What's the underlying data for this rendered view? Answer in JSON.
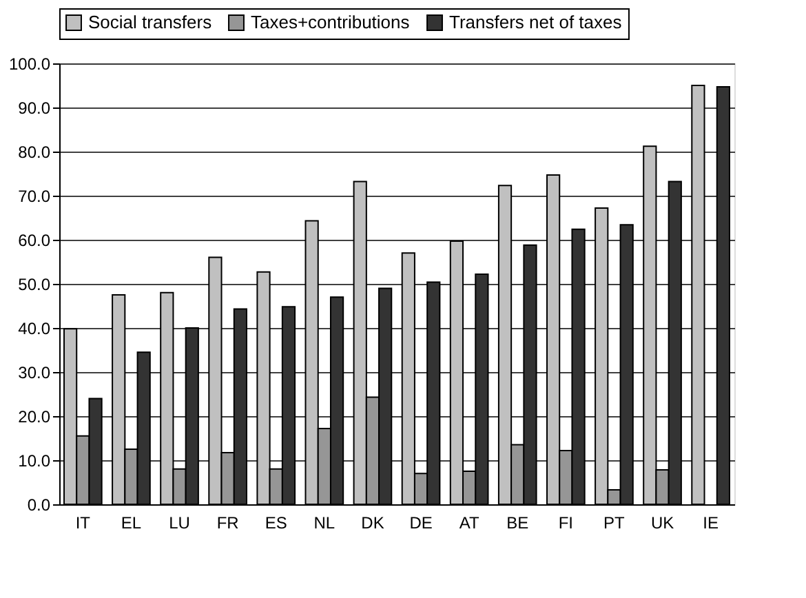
{
  "chart_data": {
    "type": "bar",
    "categories": [
      "IT",
      "EL",
      "LU",
      "FR",
      "ES",
      "NL",
      "DK",
      "DE",
      "AT",
      "BE",
      "FI",
      "PT",
      "UK",
      "IE"
    ],
    "series": [
      {
        "name": "Social transfers",
        "color": "#c0c0c0",
        "values": [
          39.8,
          47.5,
          48.0,
          56.0,
          52.7,
          64.3,
          73.2,
          57.0,
          59.7,
          72.3,
          74.7,
          67.2,
          81.2,
          95.0
        ]
      },
      {
        "name": "Taxes+contributions",
        "color": "#969696",
        "values": [
          15.5,
          12.5,
          8.0,
          11.7,
          8.0,
          17.2,
          24.3,
          7.0,
          7.5,
          13.5,
          12.2,
          3.3,
          7.8,
          null
        ]
      },
      {
        "name": "Transfers net of taxes",
        "color": "#333333",
        "values": [
          24.0,
          34.5,
          40.0,
          44.3,
          44.8,
          47.0,
          49.0,
          50.4,
          52.2,
          58.8,
          62.4,
          63.4,
          73.2,
          94.7
        ]
      }
    ],
    "ylim": [
      0,
      100
    ],
    "yticks": [
      {
        "value": 0,
        "label": "0.0"
      },
      {
        "value": 10,
        "label": "10.0"
      },
      {
        "value": 20,
        "label": "20.0"
      },
      {
        "value": 30,
        "label": "30.0"
      },
      {
        "value": 40,
        "label": "40.0"
      },
      {
        "value": 50,
        "label": "50.0"
      },
      {
        "value": 60,
        "label": "60.0"
      },
      {
        "value": 70,
        "label": "70.0"
      },
      {
        "value": 80,
        "label": "80.0"
      },
      {
        "value": 90,
        "label": "90.0"
      },
      {
        "value": 100,
        "label": "100.0"
      }
    ],
    "grid": "y",
    "legend": "top"
  }
}
